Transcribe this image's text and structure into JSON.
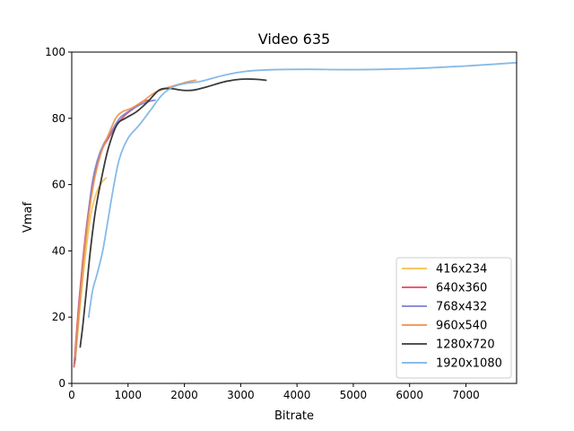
{
  "chart_data": {
    "type": "line",
    "title": "Video 635",
    "xlabel": "Bitrate",
    "ylabel": "Vmaf",
    "xlim": [
      0,
      7900
    ],
    "ylim": [
      0,
      100
    ],
    "xticks": [
      0,
      1000,
      2000,
      3000,
      4000,
      5000,
      6000,
      7000
    ],
    "yticks": [
      0,
      20,
      40,
      60,
      80,
      100
    ],
    "grid": false,
    "legend_position": "lower-right",
    "series": [
      {
        "name": "416x234",
        "color": "#f2c14e",
        "x": [
          60,
          120,
          200,
          280,
          350,
          450,
          550,
          610
        ],
        "y": [
          6,
          18,
          32,
          44,
          52,
          58,
          61,
          62
        ]
      },
      {
        "name": "640x360",
        "color": "#e04a5f",
        "x": [
          40,
          80,
          130,
          190,
          260,
          340,
          420,
          520,
          650,
          800,
          950,
          1100,
          1250,
          1380
        ],
        "y": [
          5,
          14,
          25,
          36,
          47,
          57,
          64,
          70,
          74,
          78,
          81,
          83,
          85,
          85.5
        ]
      },
      {
        "name": "768x432",
        "color": "#7b7fd4",
        "x": [
          60,
          100,
          150,
          210,
          280,
          360,
          450,
          560,
          700,
          850,
          1000,
          1200,
          1350,
          1480
        ],
        "y": [
          7,
          16,
          27,
          38,
          49,
          60,
          67,
          72,
          76,
          80,
          82,
          84,
          85,
          85.5
        ]
      },
      {
        "name": "960x540",
        "color": "#f0914d",
        "x": [
          60,
          110,
          170,
          240,
          320,
          420,
          530,
          650,
          780,
          900,
          1050,
          1250,
          1450,
          1650,
          1850,
          2050,
          2200
        ],
        "y": [
          8,
          18,
          30,
          42,
          53,
          63,
          70,
          75,
          80,
          82,
          83,
          85,
          87.5,
          89,
          90,
          91,
          91.5
        ]
      },
      {
        "name": "1280x720",
        "color": "#3a3a3a",
        "x": [
          150,
          200,
          260,
          330,
          420,
          530,
          650,
          800,
          950,
          1150,
          1350,
          1550,
          1750,
          1950,
          2150,
          2400,
          2700,
          3000,
          3250,
          3450
        ],
        "y": [
          11,
          18,
          28,
          40,
          52,
          62,
          71,
          78,
          80,
          82,
          85,
          88.5,
          89,
          88.5,
          88.5,
          89.5,
          91,
          91.8,
          91.8,
          91.5
        ]
      },
      {
        "name": "1920x1080",
        "color": "#7ab2e4",
        "x": [
          300,
          370,
          450,
          550,
          650,
          750,
          850,
          1000,
          1200,
          1400,
          1600,
          1800,
          2000,
          2300,
          2700,
          3100,
          3600,
          4200,
          5000,
          6000,
          7000,
          7900
        ],
        "y": [
          20,
          28,
          33,
          40,
          50,
          60,
          68,
          74,
          78,
          82.5,
          87,
          89.5,
          90.5,
          91.2,
          93,
          94.2,
          94.7,
          94.8,
          94.7,
          95,
          95.8,
          96.8
        ]
      }
    ]
  }
}
